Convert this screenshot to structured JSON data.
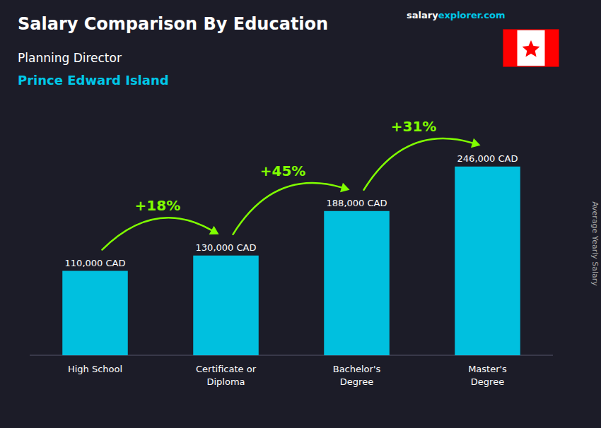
{
  "chart_data": {
    "type": "bar",
    "title": "Salary Comparison By Education",
    "subtitle": "Planning Director",
    "annotations": [
      "Prince Edward Island",
      "salary",
      "explorer.com"
    ],
    "y_label": "Average Yearly Salary",
    "categories": [
      "High School",
      "Certificate or\nDiploma",
      "Bachelor's\nDegree",
      "Master's\nDegree"
    ],
    "values": [
      110000,
      130000,
      188000,
      246000
    ],
    "value_labels": [
      "110,000 CAD",
      "130,000 CAD",
      "188,000 CAD",
      "246,000 CAD"
    ],
    "data_labels": true,
    "color": "#00c0df",
    "ylim": [
      0,
      290000
    ],
    "tick_labels": "x",
    "changes": {
      "values": [
        18,
        45,
        31
      ],
      "value_labels": [
        "+18%",
        "+45%",
        "+31%"
      ],
      "color": "#80ff00"
    }
  }
}
